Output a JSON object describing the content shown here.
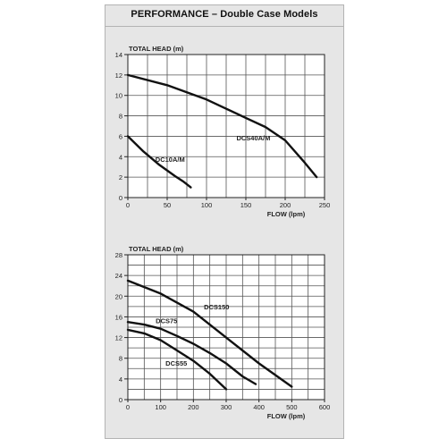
{
  "header": {
    "title": "PERFORMANCE – Double Case Models"
  },
  "chart_data": [
    {
      "type": "line",
      "ylabel": "TOTAL HEAD (m)",
      "xlabel": "FLOW (lpm)",
      "xlim": [
        0,
        250
      ],
      "ylim": [
        0,
        14
      ],
      "xticks": [
        0,
        50,
        100,
        150,
        200,
        250
      ],
      "xtick_labels": [
        "0",
        "50",
        "100",
        "150",
        "200",
        "250"
      ],
      "yticks": [
        0,
        2,
        4,
        6,
        8,
        10,
        12,
        14
      ],
      "ytick_labels": [
        "0",
        "2",
        "4",
        "6",
        "8",
        "10",
        "12",
        "14"
      ],
      "xgrid": [
        0,
        25,
        50,
        75,
        100,
        125,
        150,
        175,
        200,
        225,
        250
      ],
      "ygrid": [
        0,
        2,
        4,
        6,
        8,
        10,
        12,
        14
      ],
      "grid": true,
      "series": [
        {
          "name": "DCS40A/M",
          "x": [
            0,
            50,
            100,
            150,
            175,
            200,
            225,
            240
          ],
          "y": [
            12,
            11,
            9.6,
            7.8,
            6.9,
            5.6,
            3.4,
            2
          ]
        },
        {
          "name": "DC10A/M",
          "x": [
            0,
            20,
            40,
            60,
            70,
            80
          ],
          "y": [
            6,
            4.5,
            3.2,
            2.1,
            1.6,
            1
          ]
        }
      ],
      "annotations": [
        {
          "text": "DCS40A/M",
          "x": 138,
          "y": 5.6
        },
        {
          "text": "DC10A/M",
          "x": 35,
          "y": 3.5
        }
      ]
    },
    {
      "type": "line",
      "ylabel": "TOTAL HEAD (m)",
      "xlabel": "FLOW (lpm)",
      "xlim": [
        0,
        600
      ],
      "ylim": [
        0,
        28
      ],
      "xticks": [
        0,
        100,
        200,
        300,
        400,
        500,
        600
      ],
      "xtick_labels": [
        "0",
        "100",
        "200",
        "300",
        "400",
        "500",
        "600"
      ],
      "yticks": [
        0,
        4,
        8,
        12,
        16,
        20,
        24,
        28
      ],
      "ytick_labels": [
        "0",
        "4",
        "8",
        "12",
        "16",
        "20",
        "24",
        "28"
      ],
      "xgrid": [
        0,
        50,
        100,
        150,
        200,
        250,
        300,
        350,
        400,
        450,
        500,
        550,
        600
      ],
      "ygrid": [
        0,
        2,
        4,
        6,
        8,
        10,
        12,
        14,
        16,
        18,
        20,
        22,
        24,
        26,
        28
      ],
      "grid": true,
      "series": [
        {
          "name": "DCS150",
          "x": [
            0,
            100,
            200,
            300,
            400,
            500
          ],
          "y": [
            23,
            20.5,
            17,
            12,
            7,
            2.5
          ]
        },
        {
          "name": "DCS75",
          "x": [
            0,
            50,
            100,
            150,
            200,
            250,
            300,
            350,
            390
          ],
          "y": [
            15,
            14.5,
            13.7,
            12.3,
            10.8,
            9,
            7,
            4.5,
            3
          ]
        },
        {
          "name": "DCS55",
          "x": [
            0,
            50,
            100,
            150,
            200,
            250,
            300
          ],
          "y": [
            13.5,
            12.8,
            11.5,
            9.5,
            7.5,
            5,
            2
          ]
        }
      ],
      "annotations": [
        {
          "text": "DCS150",
          "x": 232,
          "y": 17.5
        },
        {
          "text": "DCS75",
          "x": 85,
          "y": 14.8
        },
        {
          "text": "DCS55",
          "x": 115,
          "y": 6.6
        }
      ]
    }
  ]
}
